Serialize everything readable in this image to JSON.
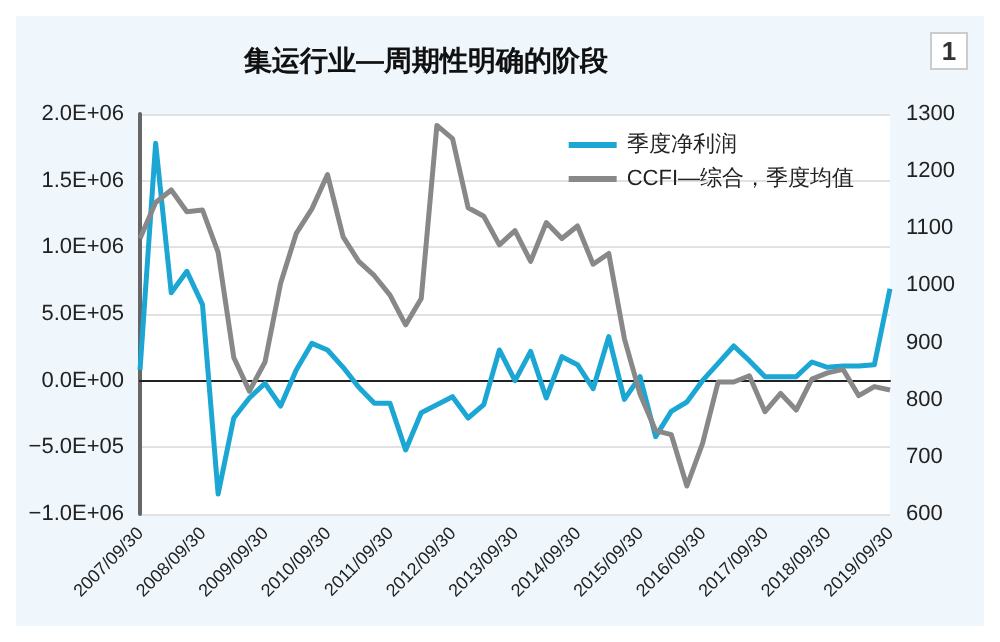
{
  "chart_data": {
    "type": "line",
    "title": "集运行业—周期性明确的阶段",
    "annotations": [
      "1"
    ],
    "categories": [
      "2007/09/30",
      null,
      null,
      null,
      "2008/09/30",
      null,
      null,
      null,
      "2009/09/30",
      null,
      null,
      null,
      "2010/09/30",
      null,
      null,
      null,
      "2011/09/30",
      null,
      null,
      null,
      "2012/09/30",
      null,
      null,
      null,
      "2013/09/30",
      null,
      null,
      null,
      "2014/09/30",
      null,
      null,
      null,
      "2015/09/30",
      null,
      null,
      null,
      "2016/09/30",
      null,
      null,
      null,
      "2017/09/30",
      null,
      null,
      null,
      "2018/09/30",
      null,
      null,
      null,
      "2019/09/30"
    ],
    "series": [
      {
        "name": "季度净利润",
        "color": "#1ba6d4",
        "values": [
          80000,
          1780000,
          660000,
          820000,
          570000,
          -850000,
          -280000,
          -130000,
          -20000,
          -190000,
          80000,
          280000,
          230000,
          100000,
          -50000,
          -170000,
          -170000,
          -520000,
          -240000,
          -180000,
          -120000,
          -280000,
          -180000,
          230000,
          0,
          220000,
          -130000,
          180000,
          120000,
          -60000,
          330000,
          -140000,
          30000,
          -420000,
          -230000,
          -160000,
          0,
          130000,
          260000,
          150000,
          30000,
          30000,
          30000,
          140000,
          100000,
          110000,
          110000,
          120000,
          690000
        ]
      },
      {
        "name": "CCFI—综合，季度均值",
        "color": "#888888",
        "axis": "y2",
        "values": [
          1082,
          1145,
          1167,
          1129,
          1132,
          1058,
          874,
          815,
          866,
          1004,
          1091,
          1134,
          1194,
          1085,
          1042,
          1017,
          983,
          931,
          977,
          1280,
          1257,
          1136,
          1121,
          1071,
          1096,
          1042,
          1110,
          1082,
          1104,
          1037,
          1056,
          907,
          810,
          746,
          739,
          649,
          723,
          831,
          831,
          842,
          779,
          811,
          782,
          836,
          847,
          853,
          807,
          823,
          817
        ]
      }
    ],
    "ylim": [
      -1000000,
      2000000
    ],
    "yticks": [
      {
        "value": -1000000,
        "label": "−1.0E+06"
      },
      {
        "value": -500000,
        "label": "−5.0E+05"
      },
      {
        "value": 0,
        "label": "0.0E+00"
      },
      {
        "value": 500000,
        "label": "5.0E+05"
      },
      {
        "value": 1000000,
        "label": "1.0E+06"
      },
      {
        "value": 1500000,
        "label": "1.5E+06"
      },
      {
        "value": 2000000,
        "label": "2.0E+06"
      }
    ],
    "y2lim": [
      600,
      1300
    ],
    "y2ticks": [
      600,
      700,
      800,
      900,
      1000,
      1100,
      1200,
      1300
    ],
    "grid": "y",
    "legend": "top right",
    "marker": "none",
    "line_style": "solid"
  }
}
